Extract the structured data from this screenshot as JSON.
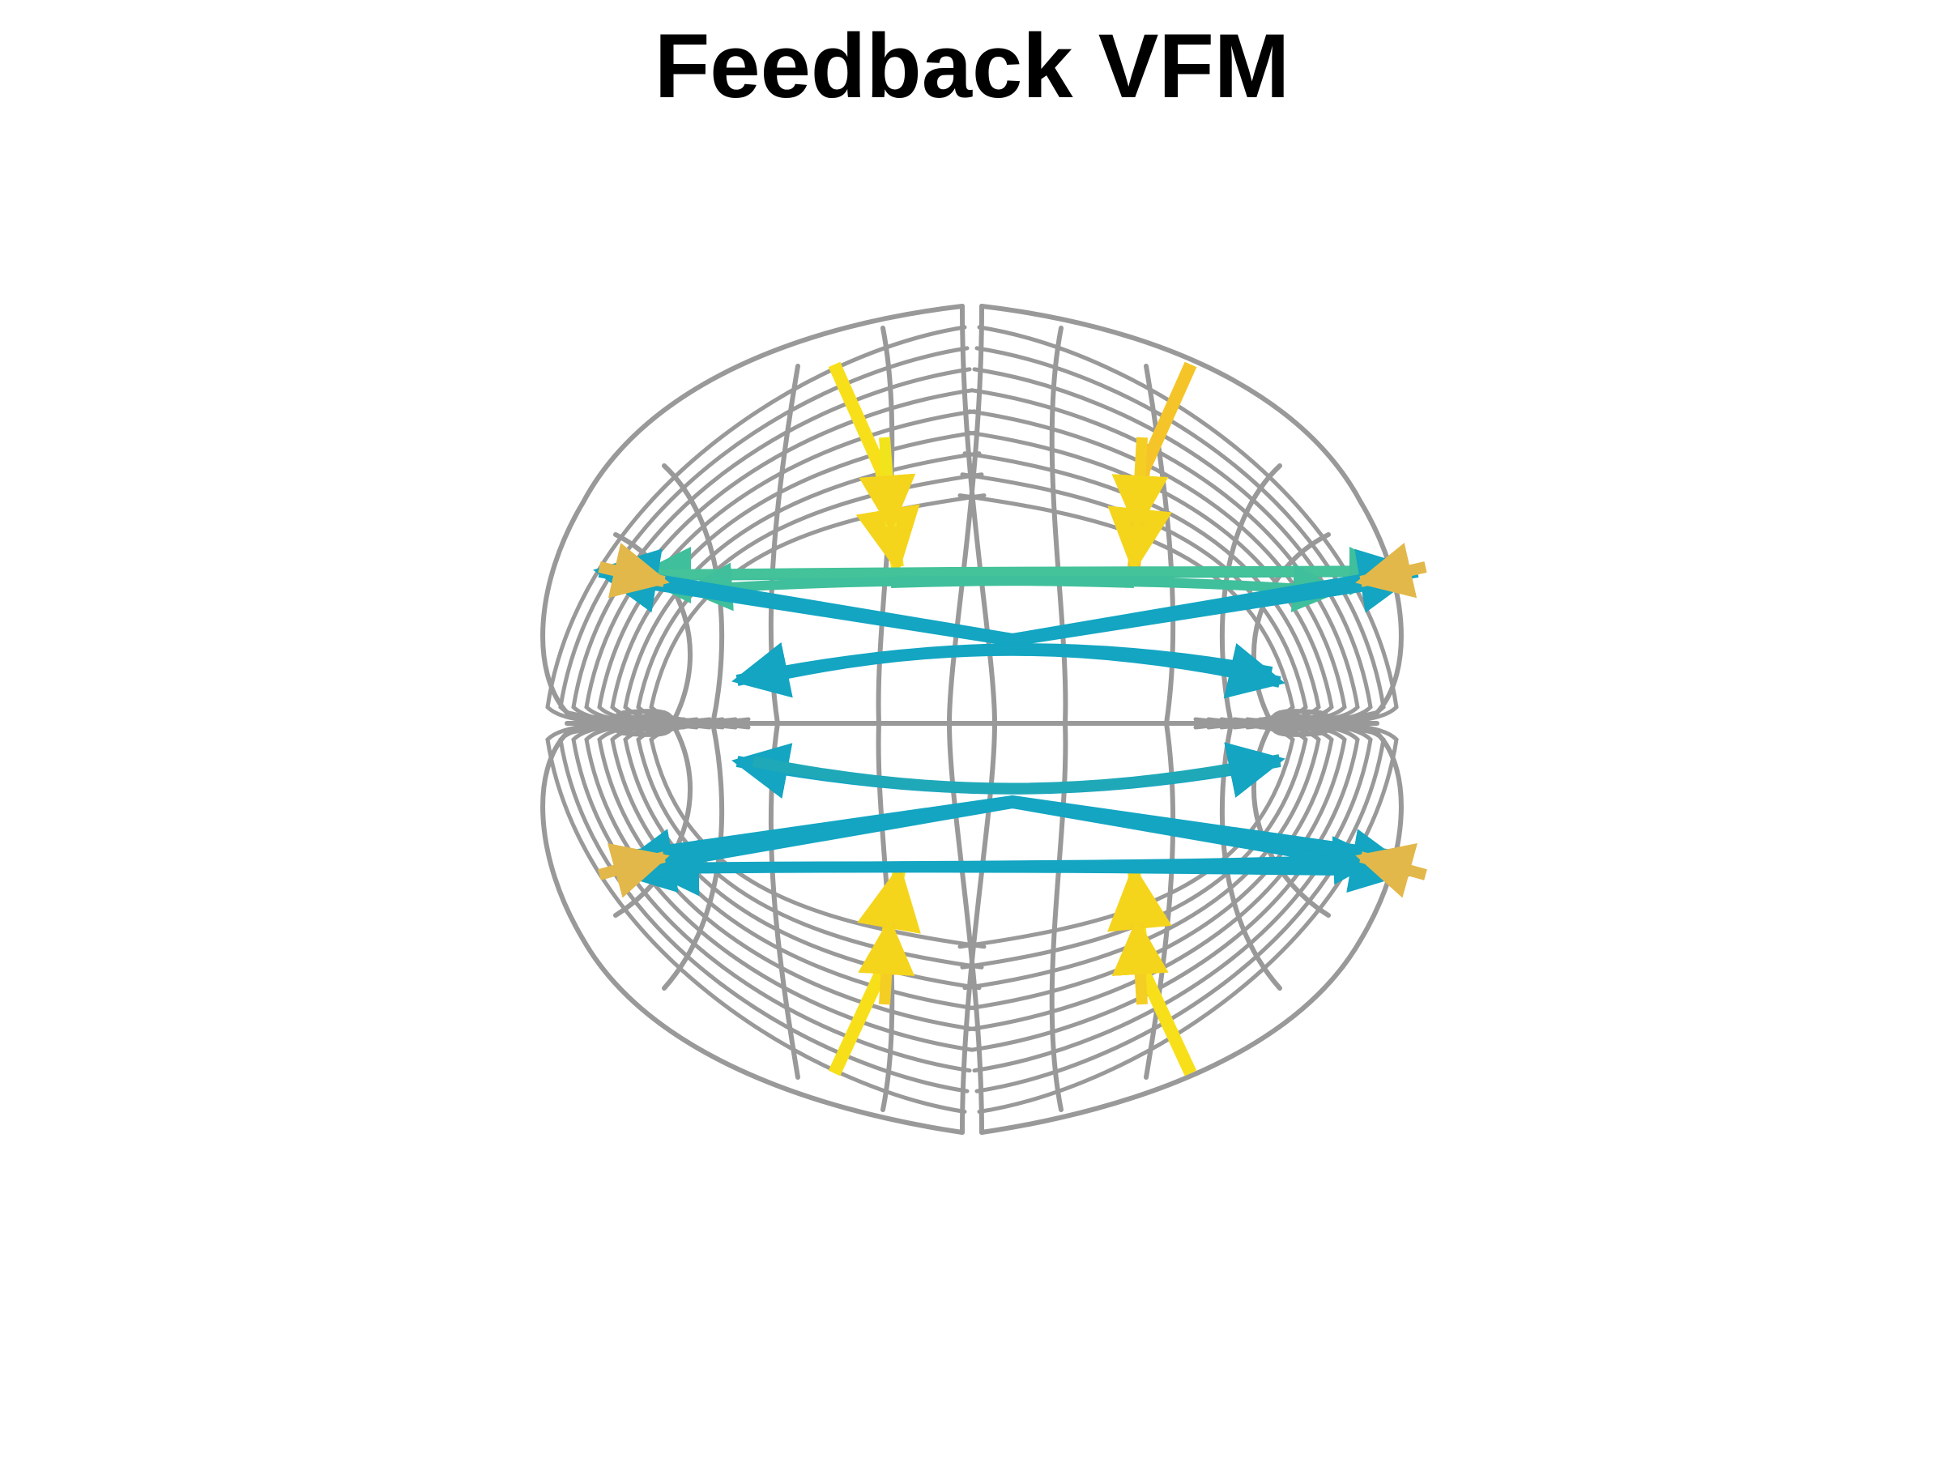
{
  "title": "Feedback VFM",
  "colors": {
    "grid": "#999999",
    "vertical_arrows": "#F7E01A",
    "vertical_arrows_alt": "#F5C428",
    "corner_arrows": "#E3B84A",
    "upper_long_arrows": "#3FBF9B",
    "cross_arrows": "#13A5C2",
    "inner_arrows": "#1FA8B8"
  }
}
